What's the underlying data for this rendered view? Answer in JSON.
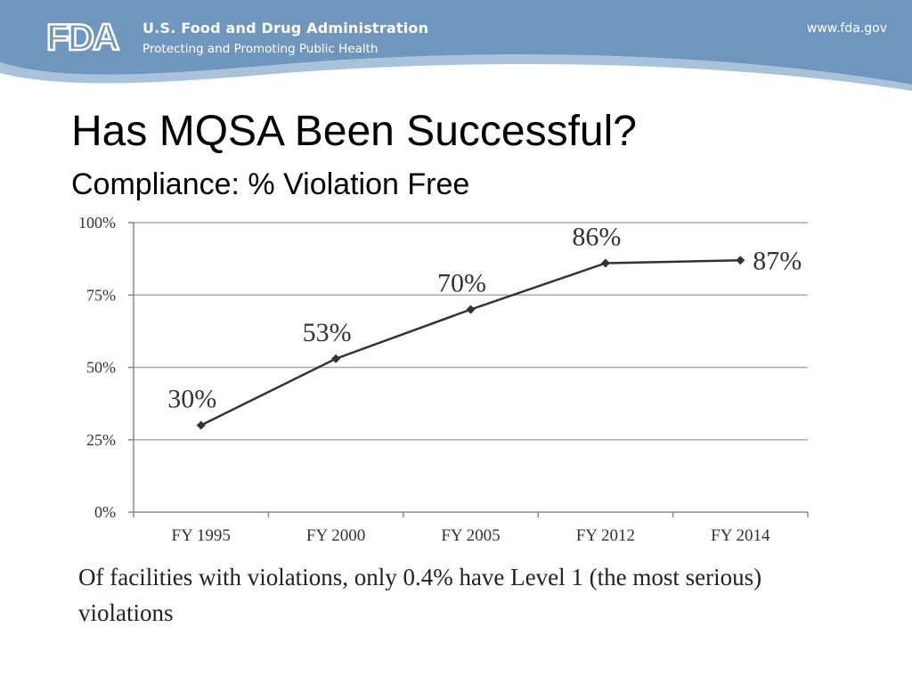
{
  "header": {
    "logo_text": "FDA",
    "agency_name": "U.S. Food and Drug Administration",
    "tagline": "Protecting and Promoting Public Health",
    "url": "www.fda.gov"
  },
  "slide": {
    "title": "Has MQSA Been Successful?",
    "subtitle": "Compliance: % Violation Free",
    "footnote": "Of facilities with violations, only 0.4%  have Level 1 (the most serious) violations"
  },
  "colors": {
    "banner": "#6f97bd",
    "banner_light": "#a9c2da",
    "line": "#333333",
    "grid": "#aaaaaa"
  },
  "chart_data": {
    "type": "line",
    "categories": [
      "FY 1995",
      "FY 2000",
      "FY 2005",
      "FY 2012",
      "FY 2014"
    ],
    "values": [
      30,
      53,
      70,
      86,
      87
    ],
    "data_labels": [
      "30%",
      "53%",
      "70%",
      "86%",
      "87%"
    ],
    "yticks": [
      "0%",
      "25%",
      "50%",
      "75%",
      "100%"
    ],
    "ylim": [
      0,
      100
    ],
    "grid": true,
    "title": "",
    "xlabel": "",
    "ylabel": ""
  }
}
